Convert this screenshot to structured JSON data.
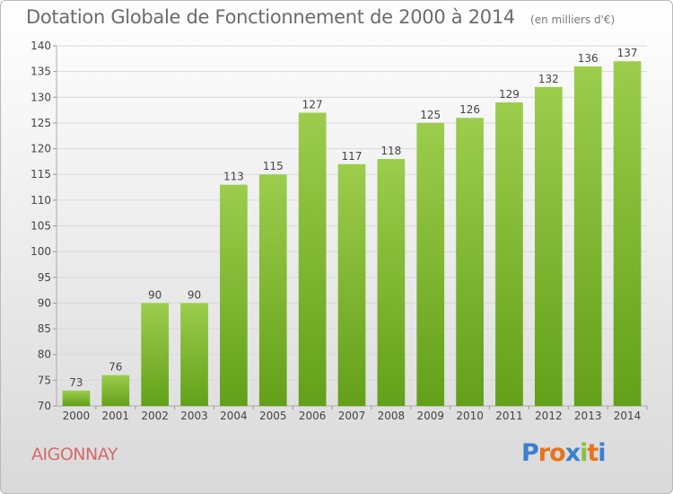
{
  "header": {
    "title": "Dotation Globale de Fonctionnement de 2000 à 2014",
    "unit_note": "(en milliers d'€)"
  },
  "footer": {
    "city": "AIGONNAY",
    "logo": {
      "letters": [
        "P",
        "r",
        "o",
        "x",
        "i",
        "t",
        "i"
      ],
      "colors": [
        "#3a7fd0",
        "#e7731c",
        "#e7731c",
        "#3a7fd0",
        "#88c047",
        "#e7731c",
        "#3a7fd0"
      ]
    }
  },
  "chart_data": {
    "type": "bar",
    "categories": [
      "2000",
      "2001",
      "2002",
      "2003",
      "2004",
      "2005",
      "2006",
      "2007",
      "2008",
      "2009",
      "2010",
      "2011",
      "2012",
      "2013",
      "2014"
    ],
    "values": [
      73,
      76,
      90,
      90,
      113,
      115,
      127,
      117,
      118,
      125,
      126,
      129,
      132,
      136,
      137
    ],
    "ylim": [
      70,
      140
    ],
    "yticks": [
      70,
      75,
      80,
      85,
      90,
      95,
      100,
      105,
      110,
      115,
      120,
      125,
      130,
      135,
      140
    ],
    "grid": true,
    "bar_color_top": "#9ccd4c",
    "bar_color_bottom": "#63a019"
  }
}
